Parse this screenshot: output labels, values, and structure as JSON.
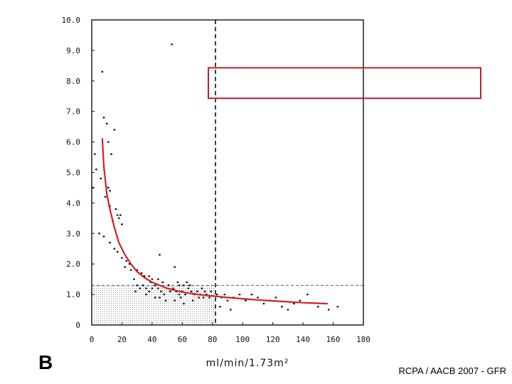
{
  "panel_letter": "B",
  "footer_text": "RCPA / AACB 2007 - GFR",
  "colors": {
    "fit_curve": "#d42020",
    "annotation_box": "#c0202a",
    "points": "#111111",
    "shaded_region": "#bdbdbd"
  },
  "chart_data": {
    "type": "scatter",
    "xlabel": "ml/min/1.73m²",
    "ylabel": "",
    "xlim": [
      0,
      180
    ],
    "ylim": [
      0,
      10
    ],
    "x_ticks": [
      "0",
      "20",
      "40",
      "60",
      "80",
      "100",
      "120",
      "140",
      "160",
      "180"
    ],
    "y_ticks": [
      "0",
      "1.0",
      "2.0",
      "3.0",
      "4.0",
      "5.0",
      "6.0",
      "7.0",
      "8.0",
      "9.0",
      "10.0"
    ],
    "reference_lines": {
      "vertical_x": 82,
      "horizontal_y": 1.3
    },
    "shaded_region": {
      "x": [
        0,
        82
      ],
      "y": [
        0,
        1.3
      ]
    },
    "annotation_box": {
      "x": [
        78,
        180
      ],
      "y": [
        7.5,
        8.5
      ],
      "text": ""
    },
    "fit_curve": [
      [
        7,
        6.1
      ],
      [
        8,
        5.2
      ],
      [
        10,
        4.3
      ],
      [
        12,
        3.8
      ],
      [
        15,
        3.2
      ],
      [
        18,
        2.7
      ],
      [
        22,
        2.3
      ],
      [
        26,
        2.0
      ],
      [
        30,
        1.75
      ],
      [
        35,
        1.55
      ],
      [
        40,
        1.4
      ],
      [
        50,
        1.2
      ],
      [
        60,
        1.08
      ],
      [
        70,
        1.0
      ],
      [
        80,
        0.95
      ],
      [
        90,
        0.9
      ],
      [
        100,
        0.86
      ],
      [
        110,
        0.82
      ],
      [
        120,
        0.79
      ],
      [
        130,
        0.76
      ],
      [
        140,
        0.73
      ],
      [
        150,
        0.71
      ],
      [
        156,
        0.7
      ]
    ],
    "points": [
      [
        53,
        9.2
      ],
      [
        7,
        8.3
      ],
      [
        8,
        6.8
      ],
      [
        10,
        6.6
      ],
      [
        11,
        6.0
      ],
      [
        15,
        6.4
      ],
      [
        13,
        5.6
      ],
      [
        2,
        5.6
      ],
      [
        3,
        5.1
      ],
      [
        1,
        4.5
      ],
      [
        6,
        4.8
      ],
      [
        11,
        4.5
      ],
      [
        12,
        4.4
      ],
      [
        9,
        4.2
      ],
      [
        12,
        3.9
      ],
      [
        16,
        3.8
      ],
      [
        17,
        3.6
      ],
      [
        19,
        3.6
      ],
      [
        18,
        3.5
      ],
      [
        20,
        3.3
      ],
      [
        5,
        3.0
      ],
      [
        14,
        3.4
      ],
      [
        8,
        2.9
      ],
      [
        12,
        2.7
      ],
      [
        15,
        2.5
      ],
      [
        17,
        2.4
      ],
      [
        20,
        2.2
      ],
      [
        23,
        2.1
      ],
      [
        25,
        2.0
      ],
      [
        26,
        1.8
      ],
      [
        30,
        1.8
      ],
      [
        33,
        1.7
      ],
      [
        35,
        1.6
      ],
      [
        38,
        1.6
      ],
      [
        40,
        1.5
      ],
      [
        45,
        2.3
      ],
      [
        55,
        1.9
      ],
      [
        22,
        1.9
      ],
      [
        28,
        1.5
      ],
      [
        30,
        1.3
      ],
      [
        32,
        1.2
      ],
      [
        34,
        1.3
      ],
      [
        36,
        1.2
      ],
      [
        38,
        1.1
      ],
      [
        40,
        1.2
      ],
      [
        42,
        1.3
      ],
      [
        44,
        1.2
      ],
      [
        46,
        1.1
      ],
      [
        48,
        1.0
      ],
      [
        50,
        1.2
      ],
      [
        52,
        1.1
      ],
      [
        54,
        1.2
      ],
      [
        56,
        1.1
      ],
      [
        58,
        1.0
      ],
      [
        60,
        1.1
      ],
      [
        62,
        1.0
      ],
      [
        64,
        1.2
      ],
      [
        66,
        1.1
      ],
      [
        68,
        1.0
      ],
      [
        70,
        1.1
      ],
      [
        72,
        1.0
      ],
      [
        74,
        0.9
      ],
      [
        76,
        1.0
      ],
      [
        78,
        0.9
      ],
      [
        44,
        1.5
      ],
      [
        47,
        1.4
      ],
      [
        51,
        1.3
      ],
      [
        57,
        1.4
      ],
      [
        61,
        1.3
      ],
      [
        63,
        1.4
      ],
      [
        65,
        1.3
      ],
      [
        59,
        0.9
      ],
      [
        55,
        0.8
      ],
      [
        45,
        0.9
      ],
      [
        36,
        1.0
      ],
      [
        67,
        0.8
      ],
      [
        71,
        0.9
      ],
      [
        73,
        1.2
      ],
      [
        75,
        1.1
      ],
      [
        79,
        1.1
      ],
      [
        83,
        1.0
      ],
      [
        86,
        0.9
      ],
      [
        88,
        1.0
      ],
      [
        90,
        0.8
      ],
      [
        94,
        0.9
      ],
      [
        98,
        1.0
      ],
      [
        102,
        0.8
      ],
      [
        106,
        1.0
      ],
      [
        110,
        0.9
      ],
      [
        114,
        0.7
      ],
      [
        118,
        0.8
      ],
      [
        122,
        0.9
      ],
      [
        126,
        0.6
      ],
      [
        130,
        0.5
      ],
      [
        134,
        0.7
      ],
      [
        138,
        0.8
      ],
      [
        143,
        1.0
      ],
      [
        150,
        0.6
      ],
      [
        157,
        0.5
      ],
      [
        163,
        0.6
      ],
      [
        92,
        0.5
      ],
      [
        85,
        0.6
      ],
      [
        61,
        0.7
      ],
      [
        58,
        1.3
      ],
      [
        49,
        0.8
      ],
      [
        42,
        0.9
      ],
      [
        39,
        1.4
      ],
      [
        34,
        1.6
      ],
      [
        29,
        1.1
      ]
    ]
  }
}
